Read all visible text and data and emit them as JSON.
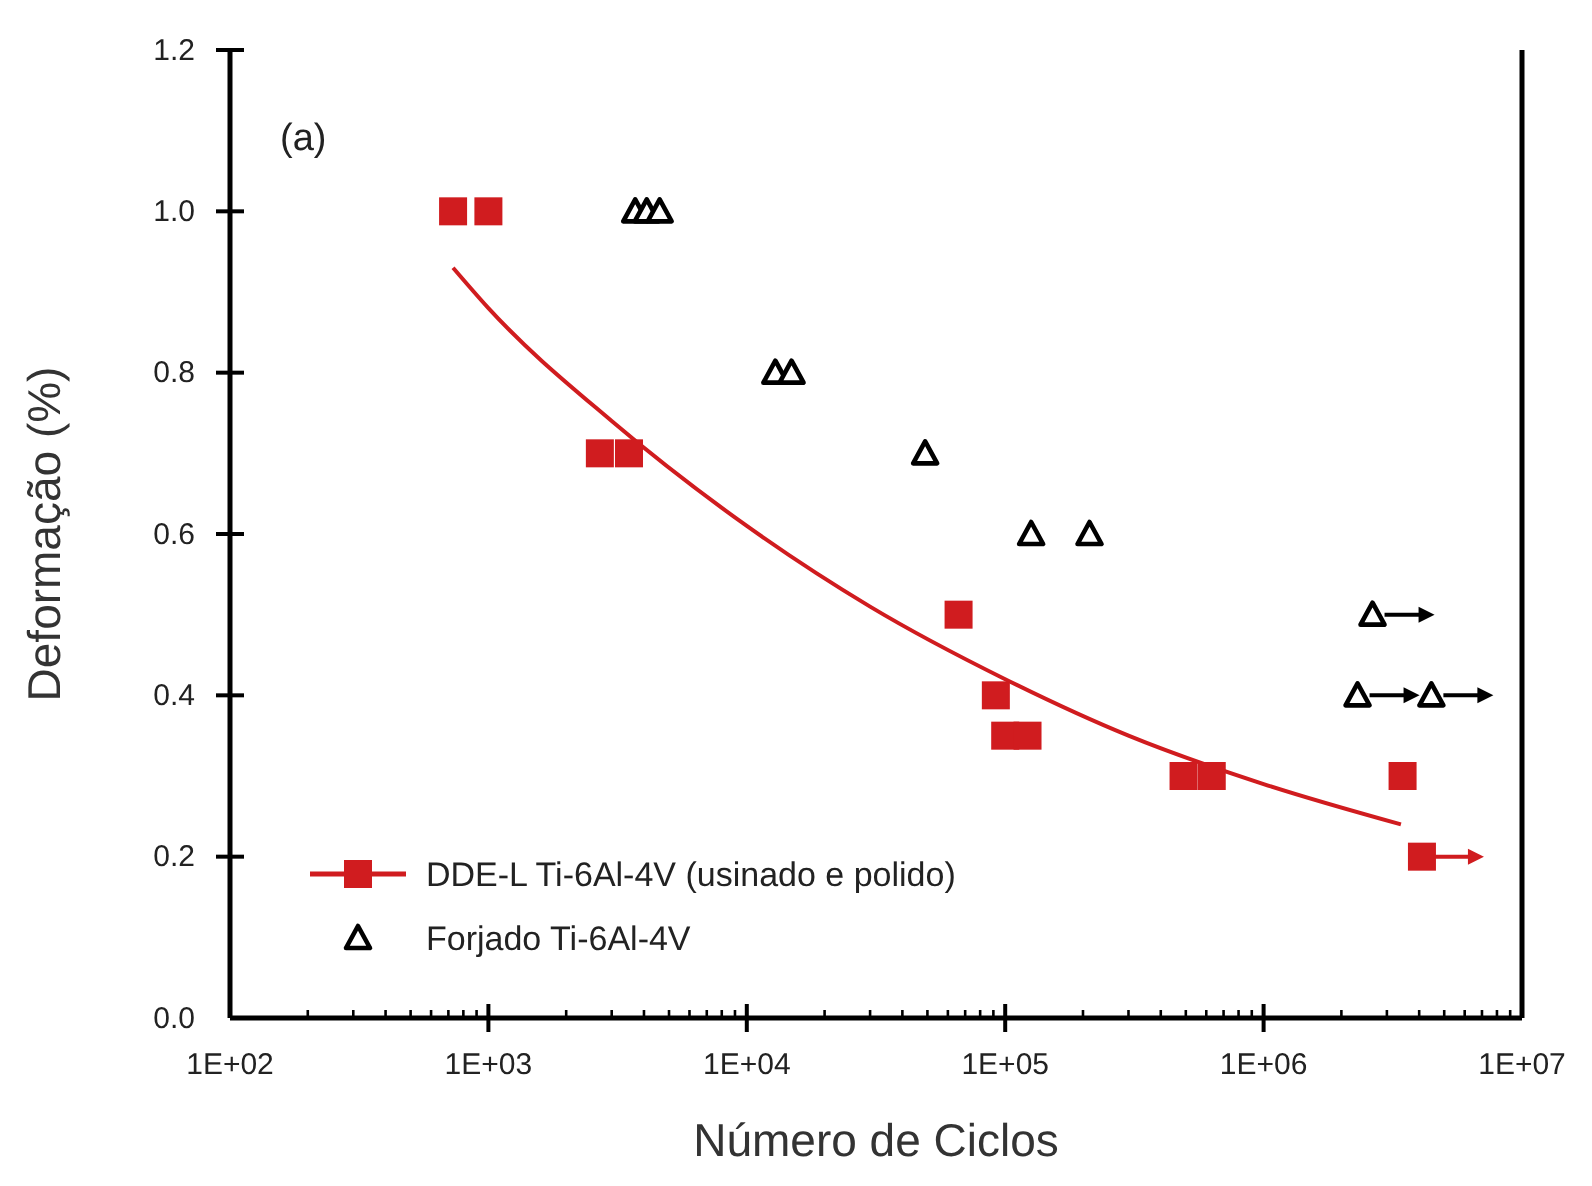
{
  "chart_data": {
    "type": "scatter",
    "xlabel": "Número de Ciclos",
    "ylabel": "Deformação (%)",
    "log": "x",
    "xlim": [
      100,
      10000000
    ],
    "ylim": [
      0,
      1.2
    ],
    "xticks": [
      {
        "value": 100,
        "label": "1E+02"
      },
      {
        "value": 1000,
        "label": "1E+03"
      },
      {
        "value": 10000,
        "label": "1E+04"
      },
      {
        "value": 100000,
        "label": "1E+05"
      },
      {
        "value": 1000000,
        "label": "1E+06"
      },
      {
        "value": 10000000,
        "label": "1E+07"
      }
    ],
    "yticks": [
      {
        "value": 0,
        "label": "0.0"
      },
      {
        "value": 0.2,
        "label": "0.2"
      },
      {
        "value": 0.4,
        "label": "0.4"
      },
      {
        "value": 0.6,
        "label": "0.6"
      },
      {
        "value": 0.8,
        "label": "0.8"
      },
      {
        "value": 1,
        "label": "1.0"
      },
      {
        "value": 1.2,
        "label": "1.2"
      }
    ],
    "grid": false,
    "legend": "bottom left",
    "annotations": [
      "(a)"
    ],
    "series": [
      {
        "name": "DDE-L Ti-6Al-4V (usinado e polido)",
        "marker": "square",
        "color": "#d01c1f",
        "x": [
          730,
          1000,
          2700,
          3500,
          66000,
          92000,
          100000,
          122000,
          490000,
          630000,
          3450000,
          4100000
        ],
        "values": [
          1.0,
          1.0,
          0.7,
          0.7,
          0.5,
          0.4,
          0.35,
          0.35,
          0.3,
          0.3,
          0.3,
          0.2
        ]
      },
      {
        "name": "Forjado Ti-6Al-4V",
        "marker": "triangle",
        "color": "#000000",
        "x": [
          3700,
          4100,
          4600,
          12900,
          14900,
          49000,
          126000,
          212000,
          2640000,
          2310000,
          4460000
        ],
        "values": [
          1.0,
          1.0,
          1.0,
          0.8,
          0.8,
          0.7,
          0.6,
          0.6,
          0.5,
          0.4,
          0.4
        ]
      },
      {
        "type": "line",
        "marker": "none",
        "color": "#d01c1f",
        "x": [
          730,
          1000,
          3000,
          10000,
          30000,
          100000,
          300000,
          1000000,
          3400000
        ],
        "values": [
          0.93,
          0.88,
          0.74,
          0.61,
          0.51,
          0.42,
          0.35,
          0.29,
          0.24
        ]
      }
    ]
  }
}
